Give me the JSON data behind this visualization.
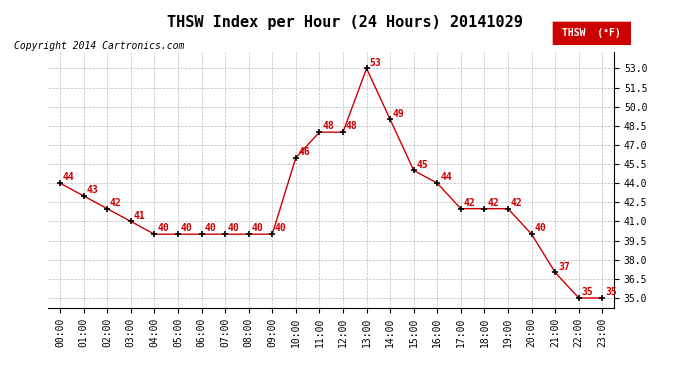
{
  "title": "THSW Index per Hour (24 Hours) 20141029",
  "copyright": "Copyright 2014 Cartronics.com",
  "legend_label": "THSW  (°F)",
  "hours": [
    0,
    1,
    2,
    3,
    4,
    5,
    6,
    7,
    8,
    9,
    10,
    11,
    12,
    13,
    14,
    15,
    16,
    17,
    18,
    19,
    20,
    21,
    22,
    23
  ],
  "values": [
    44,
    43,
    42,
    41,
    40,
    40,
    40,
    40,
    40,
    40,
    46,
    48,
    48,
    53,
    49,
    45,
    44,
    42,
    42,
    42,
    40,
    37,
    35,
    35
  ],
  "line_color": "#cc0000",
  "marker_color": "#000000",
  "label_color": "#cc0000",
  "grid_color": "#bbbbbb",
  "background_color": "#ffffff",
  "ylim": [
    34.25,
    54.25
  ],
  "yticks": [
    35.0,
    36.5,
    38.0,
    39.5,
    41.0,
    42.5,
    44.0,
    45.5,
    47.0,
    48.5,
    50.0,
    51.5,
    53.0
  ],
  "title_fontsize": 11,
  "tick_fontsize": 7,
  "copyright_fontsize": 7,
  "legend_fontsize": 7,
  "annot_fontsize": 7
}
